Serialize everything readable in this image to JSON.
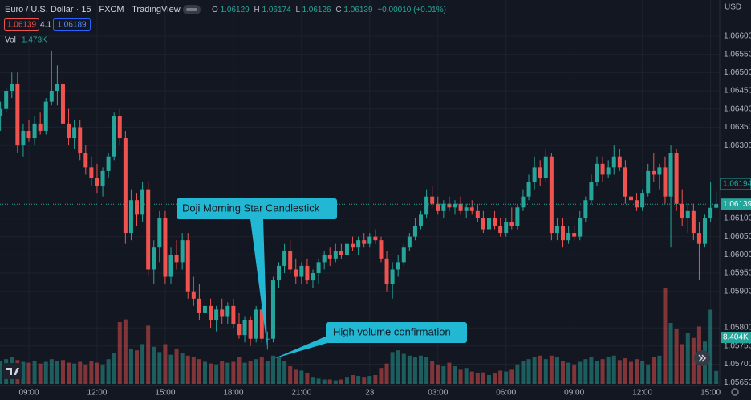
{
  "chart_data": {
    "type": "candlestick",
    "title": "Euro / U.S. Dollar · 15 · FXCM · TradingView",
    "ohlc_labels": [
      "O",
      "H",
      "L",
      "C"
    ],
    "change": "+0.00010 (+0.01%)",
    "header_boxes": [
      "1.06139",
      "4.1",
      "1.06189"
    ],
    "volume_title": "Vol",
    "volume_last": "1.473K",
    "currency": "USD",
    "tags": [
      "1.06194",
      "8.404K"
    ],
    "annotations": [
      "Doji Morning Star Candlestick",
      "High volume confirmation"
    ],
    "up_color": "#26a69a",
    "down_color": "#ef5350",
    "grid": true,
    "ylim": [
      1.05646,
      1.06699
    ],
    "yticks": [
      {
        "value": 1.066,
        "label": "1.06600"
      },
      {
        "value": 1.0655,
        "label": "1.06550"
      },
      {
        "value": 1.065,
        "label": "1.06500"
      },
      {
        "value": 1.0645,
        "label": "1.06450"
      },
      {
        "value": 1.064,
        "label": "1.06400"
      },
      {
        "value": 1.0635,
        "label": "1.06350"
      },
      {
        "value": 1.063,
        "label": "1.06300"
      },
      {
        "value": 1.061,
        "label": "1.06100"
      },
      {
        "value": 1.0605,
        "label": "1.06050"
      },
      {
        "value": 1.06,
        "label": "1.06000"
      },
      {
        "value": 1.0595,
        "label": "1.05950"
      },
      {
        "value": 1.059,
        "label": "1.05900"
      },
      {
        "value": 1.058,
        "label": "1.05800"
      },
      {
        "value": 1.0575,
        "label": "1.05750"
      },
      {
        "value": 1.057,
        "label": "1.05700"
      },
      {
        "value": 1.0565,
        "label": "1.05650"
      }
    ],
    "categories": [
      null,
      null,
      null,
      null,
      null,
      "09:00",
      null,
      null,
      null,
      null,
      null,
      null,
      null,
      null,
      null,
      null,
      null,
      "12:00",
      null,
      null,
      null,
      null,
      null,
      null,
      null,
      null,
      null,
      null,
      null,
      "15:00",
      null,
      null,
      null,
      null,
      null,
      null,
      null,
      null,
      null,
      null,
      null,
      "18:00",
      null,
      null,
      null,
      null,
      null,
      null,
      null,
      null,
      null,
      null,
      null,
      "21:00",
      null,
      null,
      null,
      null,
      null,
      null,
      null,
      null,
      null,
      null,
      null,
      "23",
      null,
      null,
      null,
      null,
      null,
      null,
      null,
      null,
      null,
      null,
      null,
      "03:00",
      null,
      null,
      null,
      null,
      null,
      null,
      null,
      null,
      null,
      null,
      null,
      "06:00",
      null,
      null,
      null,
      null,
      null,
      null,
      null,
      null,
      null,
      null,
      null,
      "09:00",
      null,
      null,
      null,
      null,
      null,
      null,
      null,
      null,
      null,
      null,
      null,
      "12:00",
      null,
      null,
      null,
      null,
      null,
      null,
      null,
      null,
      null,
      null,
      null,
      "15:00",
      null
    ],
    "ohlc": [
      [
        1.0638,
        1.0642,
        1.0634,
        1.064
      ],
      [
        1.064,
        1.0646,
        1.0639,
        1.0645
      ],
      [
        1.0645,
        1.065,
        1.0643,
        1.0647
      ],
      [
        1.0647,
        1.065,
        1.0628,
        1.063
      ],
      [
        1.063,
        1.0636,
        1.0627,
        1.0634
      ],
      [
        1.0634,
        1.0637,
        1.0631,
        1.0632
      ],
      [
        1.0632,
        1.0638,
        1.063,
        1.0636
      ],
      [
        1.0636,
        1.0639,
        1.0633,
        1.0634
      ],
      [
        1.0634,
        1.0643,
        1.0633,
        1.0642
      ],
      [
        1.0642,
        1.0656,
        1.0641,
        1.0645
      ],
      [
        1.0645,
        1.0652,
        1.0641,
        1.0647
      ],
      [
        1.0647,
        1.065,
        1.0634,
        1.0636
      ],
      [
        1.0636,
        1.064,
        1.063,
        1.0632
      ],
      [
        1.0632,
        1.0637,
        1.0629,
        1.0635
      ],
      [
        1.0635,
        1.0637,
        1.0626,
        1.0628
      ],
      [
        1.0628,
        1.063,
        1.0622,
        1.0624
      ],
      [
        1.0624,
        1.0627,
        1.0619,
        1.0621
      ],
      [
        1.0621,
        1.0625,
        1.0617,
        1.0619
      ],
      [
        1.0619,
        1.0624,
        1.0616,
        1.0623
      ],
      [
        1.0623,
        1.0628,
        1.0621,
        1.0627
      ],
      [
        1.0627,
        1.0639,
        1.0626,
        1.0638
      ],
      [
        1.0638,
        1.064,
        1.063,
        1.0632
      ],
      [
        1.0632,
        1.0634,
        1.0603,
        1.0606
      ],
      [
        1.0606,
        1.0618,
        1.0604,
        1.0615
      ],
      [
        1.0615,
        1.0617,
        1.0608,
        1.0611
      ],
      [
        1.0611,
        1.062,
        1.0609,
        1.0618
      ],
      [
        1.0618,
        1.062,
        1.0594,
        1.0596
      ],
      [
        1.0596,
        1.0604,
        1.0592,
        1.0602
      ],
      [
        1.0602,
        1.0612,
        1.0598,
        1.061
      ],
      [
        1.061,
        1.0612,
        1.0592,
        1.0594
      ],
      [
        1.0594,
        1.0602,
        1.0592,
        1.06
      ],
      [
        1.06,
        1.0604,
        1.0596,
        1.0598
      ],
      [
        1.0598,
        1.0606,
        1.0596,
        1.0604
      ],
      [
        1.0604,
        1.0606,
        1.0588,
        1.059
      ],
      [
        1.059,
        1.0594,
        1.0586,
        1.0588
      ],
      [
        1.0588,
        1.0592,
        1.0582,
        1.0584
      ],
      [
        1.0584,
        1.0587,
        1.0581,
        1.0586
      ],
      [
        1.0586,
        1.0588,
        1.058,
        1.0582
      ],
      [
        1.0582,
        1.0586,
        1.0579,
        1.0585
      ],
      [
        1.0585,
        1.0588,
        1.0581,
        1.0583
      ],
      [
        1.0583,
        1.0587,
        1.0581,
        1.0586
      ],
      [
        1.0586,
        1.0588,
        1.058,
        1.0581
      ],
      [
        1.0581,
        1.0584,
        1.0577,
        1.0578
      ],
      [
        1.0578,
        1.0583,
        1.0576,
        1.0582
      ],
      [
        1.0582,
        1.0583,
        1.0575,
        1.0577
      ],
      [
        1.0577,
        1.0586,
        1.0576,
        1.0585
      ],
      [
        1.0585,
        1.0586,
        1.0576,
        1.0577
      ],
      [
        1.05768,
        1.0579,
        1.0574,
        1.0577
      ],
      [
        1.0577,
        1.0594,
        1.0576,
        1.0593
      ],
      [
        1.0593,
        1.0598,
        1.0591,
        1.0597
      ],
      [
        1.0597,
        1.0603,
        1.0595,
        1.0601
      ],
      [
        1.0601,
        1.0604,
        1.0595,
        1.0596
      ],
      [
        1.0596,
        1.0599,
        1.0592,
        1.0594
      ],
      [
        1.0594,
        1.0598,
        1.0592,
        1.0597
      ],
      [
        1.0597,
        1.0599,
        1.0592,
        1.0593
      ],
      [
        1.0593,
        1.0596,
        1.0591,
        1.0595
      ],
      [
        1.0595,
        1.0599,
        1.0592,
        1.0598
      ],
      [
        1.0598,
        1.0601,
        1.0596,
        1.06
      ],
      [
        1.06,
        1.0602,
        1.0597,
        1.0599
      ],
      [
        1.0599,
        1.0603,
        1.0598,
        1.0601
      ],
      [
        1.0601,
        1.0603,
        1.0599,
        1.06
      ],
      [
        1.06,
        1.0604,
        1.0599,
        1.0603
      ],
      [
        1.0603,
        1.0605,
        1.0601,
        1.0602
      ],
      [
        1.0602,
        1.0605,
        1.06,
        1.0604
      ],
      [
        1.0604,
        1.0606,
        1.0602,
        1.0603
      ],
      [
        1.0603,
        1.0606,
        1.0602,
        1.0605
      ],
      [
        1.0605,
        1.0607,
        1.0603,
        1.0604
      ],
      [
        1.0604,
        1.0605,
        1.0598,
        1.0599
      ],
      [
        1.0599,
        1.0601,
        1.059,
        1.0592
      ],
      [
        1.0592,
        1.0598,
        1.0588,
        1.0596
      ],
      [
        1.0596,
        1.06,
        1.0594,
        1.0598
      ],
      [
        1.0598,
        1.0603,
        1.0597,
        1.0602
      ],
      [
        1.0602,
        1.0606,
        1.0601,
        1.0605
      ],
      [
        1.0605,
        1.061,
        1.0604,
        1.0608
      ],
      [
        1.0608,
        1.0612,
        1.0607,
        1.0611
      ],
      [
        1.0611,
        1.0618,
        1.061,
        1.0616
      ],
      [
        1.0616,
        1.0619,
        1.0613,
        1.0614
      ],
      [
        1.0614,
        1.0616,
        1.0611,
        1.0612
      ],
      [
        1.0612,
        1.0615,
        1.061,
        1.0614
      ],
      [
        1.0614,
        1.0616,
        1.0612,
        1.0613
      ],
      [
        1.0613,
        1.0615,
        1.0611,
        1.0614
      ],
      [
        1.0614,
        1.0616,
        1.0611,
        1.0612
      ],
      [
        1.0612,
        1.0614,
        1.061,
        1.0613
      ],
      [
        1.0613,
        1.0615,
        1.0611,
        1.0612
      ],
      [
        1.0612,
        1.0614,
        1.0609,
        1.061
      ],
      [
        1.061,
        1.0612,
        1.0606,
        1.0607
      ],
      [
        1.0607,
        1.0611,
        1.0606,
        1.061
      ],
      [
        1.061,
        1.0612,
        1.0607,
        1.0608
      ],
      [
        1.0608,
        1.061,
        1.0605,
        1.0606
      ],
      [
        1.0606,
        1.061,
        1.0605,
        1.0609
      ],
      [
        1.0609,
        1.0613,
        1.0607,
        1.0608
      ],
      [
        1.0608,
        1.0614,
        1.0607,
        1.0613
      ],
      [
        1.0613,
        1.0618,
        1.0612,
        1.0616
      ],
      [
        1.0616,
        1.0622,
        1.0615,
        1.062
      ],
      [
        1.062,
        1.0627,
        1.0618,
        1.0624
      ],
      [
        1.0624,
        1.0626,
        1.0619,
        1.0621
      ],
      [
        1.0621,
        1.0629,
        1.062,
        1.0627
      ],
      [
        1.0627,
        1.0628,
        1.0604,
        1.0606
      ],
      [
        1.0606,
        1.061,
        1.0604,
        1.0608
      ],
      [
        1.0608,
        1.061,
        1.0602,
        1.0604
      ],
      [
        1.0604,
        1.0608,
        1.0603,
        1.0606
      ],
      [
        1.0606,
        1.0608,
        1.0604,
        1.0605
      ],
      [
        1.0605,
        1.0612,
        1.0604,
        1.061
      ],
      [
        1.061,
        1.0616,
        1.0609,
        1.0615
      ],
      [
        1.0615,
        1.0622,
        1.0614,
        1.062
      ],
      [
        1.062,
        1.0627,
        1.0619,
        1.0625
      ],
      [
        1.0625,
        1.0627,
        1.062,
        1.0622
      ],
      [
        1.0622,
        1.0626,
        1.0621,
        1.0624
      ],
      [
        1.0624,
        1.063,
        1.0622,
        1.0627
      ],
      [
        1.0627,
        1.0629,
        1.0623,
        1.0624
      ],
      [
        1.0624,
        1.0626,
        1.0614,
        1.0616
      ],
      [
        1.0616,
        1.0618,
        1.0613,
        1.0615
      ],
      [
        1.0615,
        1.0617,
        1.0612,
        1.0613
      ],
      [
        1.0613,
        1.0618,
        1.0612,
        1.0617
      ],
      [
        1.0617,
        1.0625,
        1.0616,
        1.0623
      ],
      [
        1.0623,
        1.0628,
        1.062,
        1.0622
      ],
      [
        1.0622,
        1.0625,
        1.0618,
        1.0624
      ],
      [
        1.0624,
        1.0627,
        1.0614,
        1.0616
      ],
      [
        1.0616,
        1.063,
        1.0602,
        1.0628
      ],
      [
        1.0628,
        1.0629,
        1.0612,
        1.0614
      ],
      [
        1.0614,
        1.0618,
        1.0608,
        1.061
      ],
      [
        1.061,
        1.0614,
        1.0606,
        1.0612
      ],
      [
        1.0612,
        1.0614,
        1.0604,
        1.0606
      ],
      [
        1.0606,
        1.0609,
        1.0593,
        1.0603
      ],
      [
        1.0603,
        1.0611,
        1.0602,
        1.061
      ],
      [
        1.061,
        1.062,
        1.0609,
        1.06129
      ],
      [
        1.06129,
        1.06174,
        1.06126,
        1.06139
      ]
    ],
    "volume": [
      2.6,
      2.8,
      3.0,
      2.7,
      2.5,
      2.4,
      2.6,
      2.3,
      2.5,
      2.8,
      2.6,
      2.7,
      2.4,
      2.3,
      2.5,
      2.2,
      2.6,
      2.4,
      2.2,
      2.8,
      3.5,
      7.0,
      7.3,
      4.0,
      3.8,
      4.5,
      6.6,
      4.2,
      3.6,
      4.5,
      3.3,
      4.0,
      3.5,
      3.2,
      3.0,
      2.8,
      2.5,
      2.3,
      2.2,
      2.6,
      2.4,
      2.5,
      3.0,
      2.4,
      2.6,
      2.8,
      3.0,
      2.6,
      3.2,
      3.1,
      2.6,
      2.0,
      1.6,
      1.5,
      1.2,
      0.8,
      0.6,
      0.5,
      0.5,
      0.4,
      0.5,
      0.8,
      1.0,
      0.9,
      0.8,
      0.9,
      1.0,
      1.8,
      2.3,
      3.6,
      3.8,
      3.4,
      3.2,
      3.0,
      3.2,
      3.0,
      2.6,
      2.2,
      2.0,
      2.4,
      2.0,
      1.6,
      1.8,
      1.4,
      1.2,
      1.3,
      1.0,
      1.2,
      1.5,
      1.4,
      1.6,
      2.2,
      2.6,
      2.8,
      3.0,
      3.2,
      2.8,
      3.2,
      3.0,
      2.6,
      2.4,
      2.2,
      2.5,
      2.8,
      3.0,
      2.6,
      2.8,
      3.0,
      3.2,
      2.7,
      2.9,
      2.5,
      2.8,
      2.6,
      2.2,
      3.0,
      3.2,
      10.9,
      6.9,
      6.2,
      4.5,
      5.8,
      5.2,
      6.5,
      4.8,
      8.4,
      1.473
    ]
  }
}
